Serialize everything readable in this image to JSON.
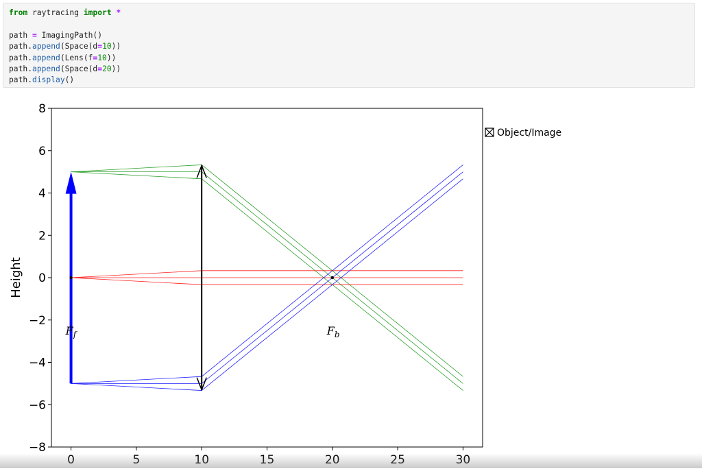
{
  "code_cell": {
    "lines": [
      [
        {
          "t": "from",
          "c": "kw"
        },
        {
          "t": " raytracing "
        },
        {
          "t": "import",
          "c": "kw"
        },
        {
          "t": " "
        },
        {
          "t": "*",
          "c": "op"
        }
      ],
      [],
      [
        {
          "t": "path "
        },
        {
          "t": "=",
          "c": "op"
        },
        {
          "t": " ImagingPath()"
        }
      ],
      [
        {
          "t": "path."
        },
        {
          "t": "append",
          "c": "fn"
        },
        {
          "t": "(Space(d"
        },
        {
          "t": "=",
          "c": "op"
        },
        {
          "t": "10",
          "c": "num"
        },
        {
          "t": "))"
        }
      ],
      [
        {
          "t": "path."
        },
        {
          "t": "append",
          "c": "fn"
        },
        {
          "t": "(Lens(f"
        },
        {
          "t": "=",
          "c": "op"
        },
        {
          "t": "10",
          "c": "num"
        },
        {
          "t": "))"
        }
      ],
      [
        {
          "t": "path."
        },
        {
          "t": "append",
          "c": "fn"
        },
        {
          "t": "(Space(d"
        },
        {
          "t": "=",
          "c": "op"
        },
        {
          "t": "20",
          "c": "num"
        },
        {
          "t": "))"
        }
      ],
      [
        {
          "t": "path."
        },
        {
          "t": "display",
          "c": "fn"
        },
        {
          "t": "()"
        }
      ]
    ]
  },
  "chart_data": {
    "type": "line",
    "ylabel": "Height",
    "xlabel": "",
    "xlim": [
      -1.5,
      31.5
    ],
    "ylim": [
      -8,
      8
    ],
    "xticks": [
      0,
      5,
      10,
      15,
      20,
      25,
      30
    ],
    "yticks": [
      -8,
      -6,
      -4,
      -2,
      0,
      2,
      4,
      6,
      8
    ],
    "legend": {
      "label": "Object/Image",
      "position": "outside-right"
    },
    "annotations": [
      {
        "label_main": "F",
        "label_sub": "f",
        "x": 0,
        "y": -2.5
      },
      {
        "label_main": "F",
        "label_sub": "b",
        "x": 20,
        "y": -2.5
      }
    ],
    "colors": {
      "top_rays": "#2ca02c",
      "axial_rays": "#ff2020",
      "bottom_rays": "#1f1fff",
      "object": "#0000ff",
      "lens": "#000000"
    },
    "object": {
      "x": 0,
      "y_from": -5,
      "y_to": 5
    },
    "lens": {
      "x": 10,
      "y_from": -5.3,
      "y_to": 5.3
    },
    "focal_points": [
      {
        "x": 20,
        "y": 0
      }
    ],
    "series": [
      {
        "group": "top",
        "x": [
          0,
          10,
          30
        ],
        "y": [
          5,
          5.33,
          -4.67
        ]
      },
      {
        "group": "top",
        "x": [
          0,
          10,
          30
        ],
        "y": [
          5,
          5,
          -5
        ]
      },
      {
        "group": "top",
        "x": [
          0,
          10,
          30
        ],
        "y": [
          5,
          4.67,
          -5.33
        ]
      },
      {
        "group": "axial",
        "x": [
          0,
          10,
          30
        ],
        "y": [
          0,
          0.33,
          0.33
        ]
      },
      {
        "group": "axial",
        "x": [
          0,
          10,
          30
        ],
        "y": [
          0,
          0,
          0
        ]
      },
      {
        "group": "axial",
        "x": [
          0,
          10,
          30
        ],
        "y": [
          0,
          -0.33,
          -0.33
        ]
      },
      {
        "group": "bottom",
        "x": [
          0,
          10,
          30
        ],
        "y": [
          -5,
          -4.67,
          5.33
        ]
      },
      {
        "group": "bottom",
        "x": [
          0,
          10,
          30
        ],
        "y": [
          -5,
          -5,
          5
        ]
      },
      {
        "group": "bottom",
        "x": [
          0,
          10,
          30
        ],
        "y": [
          -5,
          -5.33,
          4.67
        ]
      }
    ]
  }
}
